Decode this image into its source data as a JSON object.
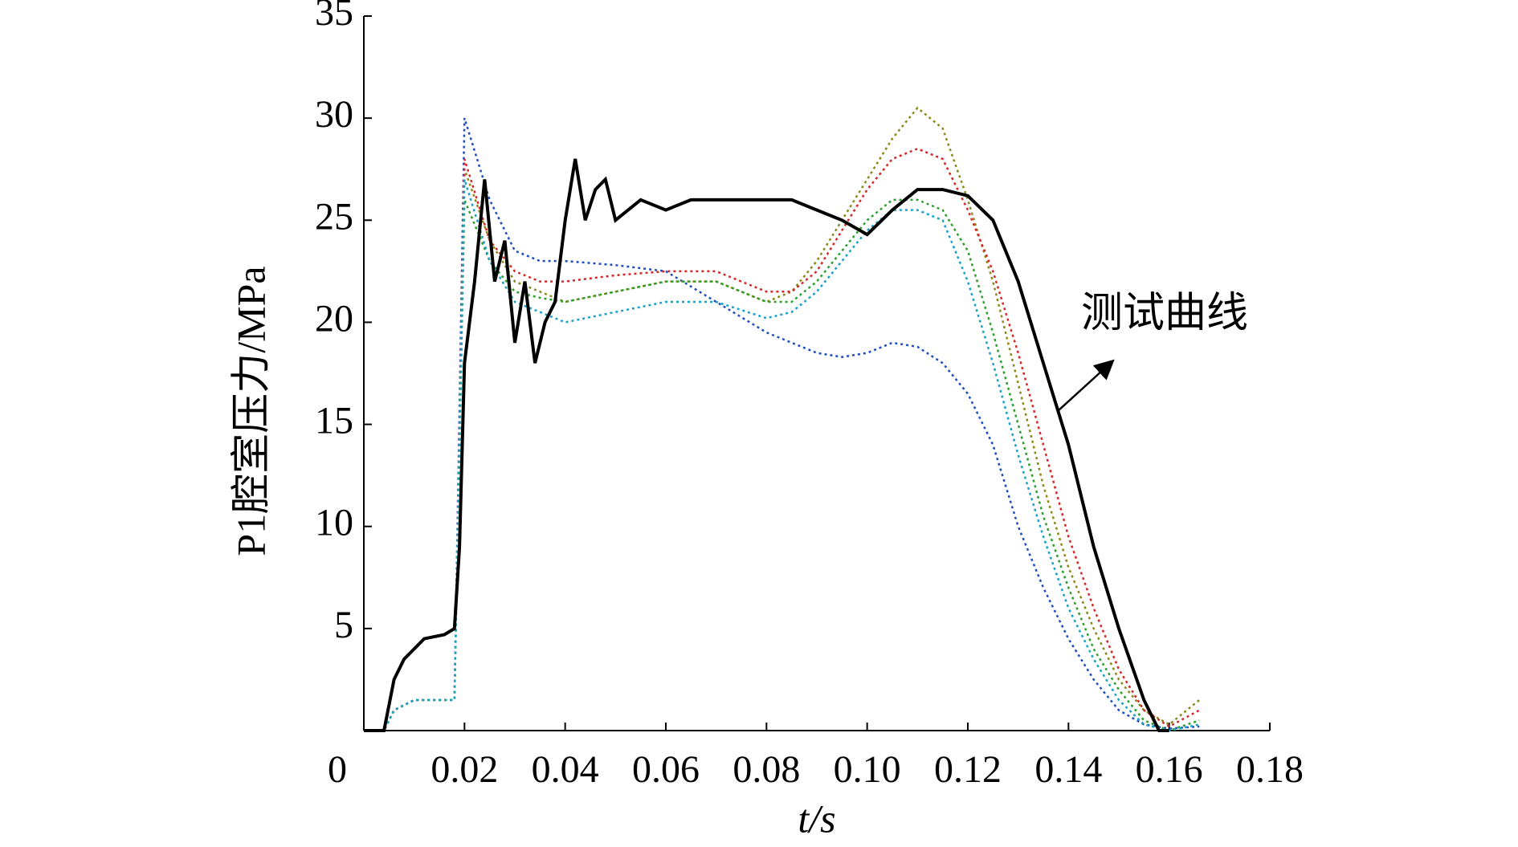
{
  "chart_data": {
    "type": "line",
    "y_label": "P1腔室压力/MPa",
    "x_label": "t/s",
    "annotation": "测试曲线",
    "xlim": [
      0,
      0.18
    ],
    "ylim": [
      0,
      35
    ],
    "xticks": [
      0,
      0.02,
      0.04,
      0.06,
      0.08,
      {
        "value": 0.1,
        "label": "0.10"
      },
      0.12,
      0.14,
      0.16,
      0.18
    ],
    "yticks": [
      5,
      10,
      15,
      20,
      25,
      30,
      35
    ],
    "series": [
      {
        "color": "#1f4fbf",
        "x": [
          0,
          0.004,
          0.006,
          0.01,
          0.018,
          0.02,
          0.025,
          0.03,
          0.035,
          0.04,
          0.05,
          0.06,
          0.07,
          0.08,
          0.085,
          0.09,
          0.095,
          0.1,
          0.105,
          0.11,
          0.115,
          0.12,
          0.125,
          0.13,
          0.135,
          0.14,
          0.145,
          0.15,
          0.155,
          0.16,
          0.166
        ],
        "values": [
          0,
          0,
          1,
          1.5,
          1.5,
          30,
          26,
          23.5,
          23,
          23,
          22.8,
          22.5,
          21,
          19.5,
          19,
          18.5,
          18.3,
          18.5,
          19,
          18.8,
          18,
          16.5,
          14,
          10,
          7,
          4.5,
          2.5,
          1,
          0.3,
          0.1,
          0.2
        ]
      },
      {
        "color": "#8a8a1a",
        "x": [
          0,
          0.004,
          0.006,
          0.01,
          0.018,
          0.02,
          0.025,
          0.03,
          0.035,
          0.04,
          0.05,
          0.06,
          0.07,
          0.08,
          0.085,
          0.09,
          0.095,
          0.1,
          0.105,
          0.11,
          0.115,
          0.12,
          0.125,
          0.13,
          0.135,
          0.14,
          0.145,
          0.15,
          0.155,
          0.16,
          0.166
        ],
        "values": [
          0,
          0,
          1,
          1.5,
          1.5,
          27.5,
          24,
          22,
          21.5,
          21,
          21.5,
          22,
          22,
          21,
          21.5,
          23,
          25,
          27,
          29,
          30.5,
          29.5,
          26,
          22,
          17,
          12,
          8,
          5,
          2.5,
          1,
          0.3,
          1.5
        ]
      },
      {
        "color": "#d62728",
        "x": [
          0,
          0.004,
          0.006,
          0.01,
          0.018,
          0.02,
          0.025,
          0.03,
          0.035,
          0.04,
          0.05,
          0.06,
          0.07,
          0.08,
          0.085,
          0.09,
          0.095,
          0.1,
          0.105,
          0.11,
          0.115,
          0.12,
          0.125,
          0.13,
          0.135,
          0.14,
          0.145,
          0.15,
          0.155,
          0.16,
          0.166
        ],
        "values": [
          0,
          0,
          1,
          1.5,
          1.5,
          28,
          24,
          22.5,
          22,
          22,
          22.3,
          22.5,
          22.5,
          21.5,
          21.5,
          22.5,
          24.5,
          26.5,
          28,
          28.5,
          28,
          25.5,
          22.5,
          18.5,
          14,
          9.5,
          6,
          3,
          1,
          0.2,
          1
        ]
      },
      {
        "color": "#2ca02c",
        "x": [
          0,
          0.004,
          0.006,
          0.01,
          0.018,
          0.02,
          0.025,
          0.03,
          0.035,
          0.04,
          0.05,
          0.06,
          0.07,
          0.08,
          0.085,
          0.09,
          0.095,
          0.1,
          0.105,
          0.11,
          0.115,
          0.12,
          0.125,
          0.13,
          0.135,
          0.14,
          0.145,
          0.15,
          0.155,
          0.16,
          0.166
        ],
        "values": [
          0,
          0,
          1,
          1.5,
          1.5,
          26,
          23,
          21.5,
          21.2,
          21,
          21.5,
          22,
          22,
          21,
          21,
          22,
          23.5,
          25,
          26,
          26,
          25.5,
          23.5,
          19.5,
          15,
          10.5,
          7,
          4,
          2,
          0.5,
          0,
          0.5
        ]
      },
      {
        "color": "#17a2c8",
        "x": [
          0,
          0.004,
          0.006,
          0.01,
          0.018,
          0.02,
          0.025,
          0.03,
          0.035,
          0.04,
          0.05,
          0.06,
          0.07,
          0.08,
          0.085,
          0.09,
          0.095,
          0.1,
          0.105,
          0.11,
          0.115,
          0.12,
          0.125,
          0.13,
          0.135,
          0.14,
          0.145,
          0.15,
          0.155,
          0.16,
          0.166
        ],
        "values": [
          0,
          0,
          1,
          1.5,
          1.5,
          27,
          23,
          21,
          20.5,
          20,
          20.5,
          21,
          21,
          20.2,
          20.5,
          21.5,
          23,
          24.5,
          25.5,
          25.5,
          25,
          22,
          18,
          13.5,
          9.5,
          6,
          3.5,
          1.5,
          0.3,
          0,
          0.3
        ]
      },
      {
        "name": "测试曲线",
        "color": "#000000",
        "x": [
          0,
          0.004,
          0.006,
          0.008,
          0.012,
          0.016,
          0.018,
          0.019,
          0.02,
          0.022,
          0.024,
          0.026,
          0.028,
          0.03,
          0.032,
          0.034,
          0.036,
          0.038,
          0.04,
          0.042,
          0.044,
          0.046,
          0.048,
          0.05,
          0.055,
          0.06,
          0.065,
          0.07,
          0.075,
          0.08,
          0.085,
          0.09,
          0.095,
          0.1,
          0.105,
          0.11,
          0.115,
          0.12,
          0.125,
          0.13,
          0.135,
          0.14,
          0.145,
          0.15,
          0.155,
          0.158,
          0.16
        ],
        "values": [
          0,
          0,
          2.5,
          3.5,
          4.5,
          4.7,
          5,
          9,
          18,
          22,
          27,
          22,
          24,
          19,
          22,
          18,
          20,
          21,
          25,
          28,
          25,
          26.5,
          27,
          25,
          26,
          25.5,
          26,
          26,
          26,
          26,
          26,
          25.5,
          25,
          24.3,
          25.5,
          26.5,
          26.5,
          26.2,
          25,
          22,
          18,
          14,
          9,
          5,
          1.5,
          0,
          0
        ]
      }
    ]
  }
}
